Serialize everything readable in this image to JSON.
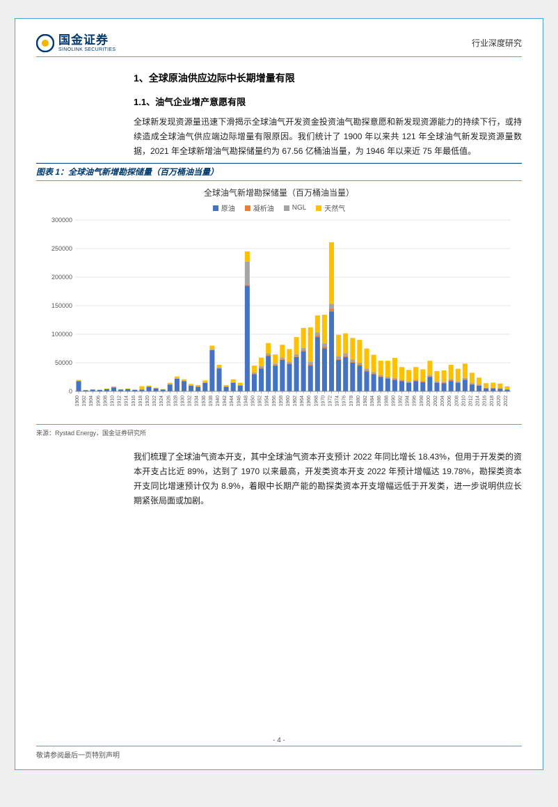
{
  "header": {
    "logo_cn": "国金证券",
    "logo_en": "SINOLINK SECURITIES",
    "right_text": "行业深度研究"
  },
  "section": {
    "h1": "1、全球原油供应边际中长期增量有限",
    "h2": "1.1、油气企业增产意愿有限",
    "p1": "全球新发现资源量迅速下滑揭示全球油气开发资金投资油气勘探意愿和新发现资源能力的持续下行，或持续造成全球油气供应端边际增量有限原因。我们统计了 1900 年以来共 121 年全球油气新发现资源量数据，2021 年全球新增油气勘探储量约为 67.56 亿桶油当量，为 1946 年以来近 75 年最低值。",
    "p2": "我们梳理了全球油气资本开支，其中全球油气资本开支预计 2022 年同比增长 18.43%，但用于开发类的资本开支占比近 89%，达到了 1970 以来最高，开发类资本开支 2022 年预计增幅达 19.78%，勘探类资本开支同比增速预计仅为 8.9%，着眼中长期产能的勘探类资本开支增幅远低于开发类，进一步说明供应长期紧张局面或加剧。"
  },
  "figure": {
    "caption": "图表 1：全球油气新增勘探储量（百万桶油当量）",
    "chart_title": "全球油气新增勘探储量（百万桶油当量）",
    "source": "来源：Rystad Energy，国金证券研究所",
    "legend": {
      "s1": "原油",
      "s2": "凝析油",
      "s3": "NGL",
      "s4": "天然气"
    }
  },
  "chart": {
    "type": "stacked-bar",
    "ylim": [
      0,
      300000
    ],
    "ytick_step": 50000,
    "yticks": [
      "0",
      "50000",
      "100000",
      "150000",
      "200000",
      "250000",
      "300000"
    ],
    "categories": [
      "1900",
      "1902",
      "1904",
      "1906",
      "1908",
      "1910",
      "1912",
      "1914",
      "1916",
      "1918",
      "1920",
      "1922",
      "1924",
      "1926",
      "1928",
      "1930",
      "1932",
      "1934",
      "1936",
      "1938",
      "1940",
      "1942",
      "1944",
      "1946",
      "1948",
      "1950",
      "1952",
      "1954",
      "1956",
      "1958",
      "1960",
      "1962",
      "1964",
      "1966",
      "1968",
      "1970",
      "1972",
      "1974",
      "1976",
      "1978",
      "1980",
      "1982",
      "1984",
      "1986",
      "1988",
      "1990",
      "1992",
      "1994",
      "1996",
      "1998",
      "2000",
      "2002",
      "2004",
      "2006",
      "2008",
      "2010",
      "2012",
      "2014",
      "2016",
      "2018",
      "2020",
      "2022"
    ],
    "colors": {
      "crude": "#4573c4",
      "condensate": "#ed7d31",
      "ngl": "#a5a5a5",
      "gas": "#ffc000",
      "grid": "#e6e6e6",
      "axis": "#888888",
      "background": "#ffffff",
      "tick_label": "#555555"
    },
    "font_sizes": {
      "title": 12,
      "legend": 10,
      "axis_label": 7,
      "ytick": 9
    },
    "data": [
      {
        "y": 1900,
        "c": 18000,
        "d": 0,
        "n": 0,
        "g": 2000
      },
      {
        "y": 1902,
        "c": 2000,
        "d": 0,
        "n": 0,
        "g": 500
      },
      {
        "y": 1904,
        "c": 3000,
        "d": 0,
        "n": 0,
        "g": 500
      },
      {
        "y": 1906,
        "c": 2500,
        "d": 0,
        "n": 0,
        "g": 500
      },
      {
        "y": 1908,
        "c": 4000,
        "d": 0,
        "n": 0,
        "g": 1000
      },
      {
        "y": 1910,
        "c": 7000,
        "d": 0,
        "n": 0,
        "g": 1500
      },
      {
        "y": 1912,
        "c": 3000,
        "d": 0,
        "n": 0,
        "g": 800
      },
      {
        "y": 1914,
        "c": 4000,
        "d": 0,
        "n": 0,
        "g": 1000
      },
      {
        "y": 1916,
        "c": 2500,
        "d": 0,
        "n": 0,
        "g": 700
      },
      {
        "y": 1918,
        "c": 3000,
        "d": 0,
        "n": 0,
        "g": 6000
      },
      {
        "y": 1920,
        "c": 8000,
        "d": 0,
        "n": 0,
        "g": 2000
      },
      {
        "y": 1922,
        "c": 5000,
        "d": 0,
        "n": 0,
        "g": 1500
      },
      {
        "y": 1924,
        "c": 3000,
        "d": 0,
        "n": 0,
        "g": 1000
      },
      {
        "y": 1926,
        "c": 12000,
        "d": 0,
        "n": 0,
        "g": 3000
      },
      {
        "y": 1928,
        "c": 22000,
        "d": 0,
        "n": 0,
        "g": 4000
      },
      {
        "y": 1930,
        "c": 18000,
        "d": 0,
        "n": 0,
        "g": 3000
      },
      {
        "y": 1932,
        "c": 10000,
        "d": 0,
        "n": 0,
        "g": 3000
      },
      {
        "y": 1934,
        "c": 8000,
        "d": 0,
        "n": 0,
        "g": 3000
      },
      {
        "y": 1936,
        "c": 15000,
        "d": 0,
        "n": 0,
        "g": 4000
      },
      {
        "y": 1938,
        "c": 72000,
        "d": 0,
        "n": 2000,
        "g": 6000
      },
      {
        "y": 1940,
        "c": 40000,
        "d": 0,
        "n": 1500,
        "g": 5000
      },
      {
        "y": 1942,
        "c": 8000,
        "d": 0,
        "n": 0,
        "g": 3000
      },
      {
        "y": 1944,
        "c": 15000,
        "d": 0,
        "n": 1000,
        "g": 5000
      },
      {
        "y": 1946,
        "c": 10000,
        "d": 0,
        "n": 1000,
        "g": 4000
      },
      {
        "y": 1948,
        "c": 185000,
        "d": 2000,
        "n": 40000,
        "g": 18000
      },
      {
        "y": 1950,
        "c": 30000,
        "d": 1000,
        "n": 2000,
        "g": 12000
      },
      {
        "y": 1952,
        "c": 40000,
        "d": 1000,
        "n": 3000,
        "g": 15000
      },
      {
        "y": 1954,
        "c": 62000,
        "d": 1500,
        "n": 3000,
        "g": 18000
      },
      {
        "y": 1956,
        "c": 45000,
        "d": 1000,
        "n": 2500,
        "g": 16000
      },
      {
        "y": 1958,
        "c": 55000,
        "d": 1500,
        "n": 3000,
        "g": 22000
      },
      {
        "y": 1960,
        "c": 48000,
        "d": 1500,
        "n": 2500,
        "g": 22000
      },
      {
        "y": 1962,
        "c": 60000,
        "d": 2000,
        "n": 3000,
        "g": 30000
      },
      {
        "y": 1964,
        "c": 70000,
        "d": 2000,
        "n": 4000,
        "g": 35000
      },
      {
        "y": 1966,
        "c": 45000,
        "d": 2000,
        "n": 5000,
        "g": 60000
      },
      {
        "y": 1968,
        "c": 95000,
        "d": 3000,
        "n": 5000,
        "g": 30000
      },
      {
        "y": 1970,
        "c": 75000,
        "d": 3000,
        "n": 6000,
        "g": 50000
      },
      {
        "y": 1972,
        "c": 140000,
        "d": 5000,
        "n": 8000,
        "g": 108000
      },
      {
        "y": 1974,
        "c": 55000,
        "d": 2000,
        "n": 4000,
        "g": 38000
      },
      {
        "y": 1976,
        "c": 60000,
        "d": 2500,
        "n": 4000,
        "g": 35000
      },
      {
        "y": 1978,
        "c": 50000,
        "d": 2000,
        "n": 3500,
        "g": 38000
      },
      {
        "y": 1980,
        "c": 45000,
        "d": 2000,
        "n": 3000,
        "g": 40000
      },
      {
        "y": 1982,
        "c": 35000,
        "d": 2000,
        "n": 3000,
        "g": 35000
      },
      {
        "y": 1984,
        "c": 30000,
        "d": 1500,
        "n": 2500,
        "g": 30000
      },
      {
        "y": 1986,
        "c": 25000,
        "d": 1500,
        "n": 2000,
        "g": 25000
      },
      {
        "y": 1988,
        "c": 22000,
        "d": 1500,
        "n": 2000,
        "g": 28000
      },
      {
        "y": 1990,
        "c": 20000,
        "d": 1500,
        "n": 2000,
        "g": 35000
      },
      {
        "y": 1992,
        "c": 18000,
        "d": 1000,
        "n": 1500,
        "g": 22000
      },
      {
        "y": 1994,
        "c": 15000,
        "d": 1000,
        "n": 1500,
        "g": 20000
      },
      {
        "y": 1996,
        "c": 18000,
        "d": 1000,
        "n": 1500,
        "g": 22000
      },
      {
        "y": 1998,
        "c": 16000,
        "d": 1000,
        "n": 1500,
        "g": 20000
      },
      {
        "y": 2000,
        "c": 25000,
        "d": 1500,
        "n": 2000,
        "g": 25000
      },
      {
        "y": 2002,
        "c": 15000,
        "d": 1000,
        "n": 1500,
        "g": 18000
      },
      {
        "y": 2004,
        "c": 14000,
        "d": 1000,
        "n": 1500,
        "g": 20000
      },
      {
        "y": 2006,
        "c": 18000,
        "d": 1500,
        "n": 2000,
        "g": 25000
      },
      {
        "y": 2008,
        "c": 15000,
        "d": 1000,
        "n": 1500,
        "g": 22000
      },
      {
        "y": 2010,
        "c": 20000,
        "d": 1500,
        "n": 2000,
        "g": 25000
      },
      {
        "y": 2012,
        "c": 12000,
        "d": 1000,
        "n": 1500,
        "g": 18000
      },
      {
        "y": 2014,
        "c": 10000,
        "d": 800,
        "n": 1200,
        "g": 12000
      },
      {
        "y": 2016,
        "c": 5000,
        "d": 500,
        "n": 800,
        "g": 8000
      },
      {
        "y": 2018,
        "c": 5000,
        "d": 500,
        "n": 700,
        "g": 9000
      },
      {
        "y": 2020,
        "c": 4500,
        "d": 400,
        "n": 600,
        "g": 8000
      },
      {
        "y": 2022,
        "c": 3000,
        "d": 300,
        "n": 400,
        "g": 5000
      }
    ]
  },
  "footer": {
    "disclaimer": "敬请参阅最后一页特别声明",
    "page_num": "- 4 -"
  }
}
